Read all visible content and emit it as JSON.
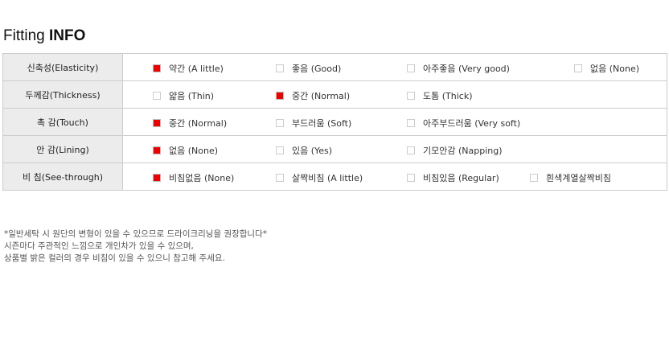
{
  "title": {
    "plain": "Fitting ",
    "bold": "INFO"
  },
  "rows": [
    {
      "label": "신축성(Elasticity)",
      "options": [
        {
          "text": "약간 (A little)",
          "checked": true
        },
        {
          "text": "좋음 (Good)",
          "checked": false
        },
        {
          "text": "아주좋음 (Very good)",
          "checked": false
        },
        {
          "text": "없음 (None)",
          "checked": false
        }
      ]
    },
    {
      "label": "두께감(Thickness)",
      "options": [
        {
          "text": "얇음 (Thin)",
          "checked": false
        },
        {
          "text": "중간 (Normal)",
          "checked": true
        },
        {
          "text": "도톰 (Thick)",
          "checked": false
        }
      ]
    },
    {
      "label": "촉 감(Touch)",
      "options": [
        {
          "text": "중간 (Normal)",
          "checked": true
        },
        {
          "text": "부드러움 (Soft)",
          "checked": false
        },
        {
          "text": "아주부드러움 (Very soft)",
          "checked": false
        }
      ]
    },
    {
      "label": "안 감(Lining)",
      "options": [
        {
          "text": "없음 (None)",
          "checked": true
        },
        {
          "text": "있음 (Yes)",
          "checked": false
        },
        {
          "text": "기모안감 (Napping)",
          "checked": false
        }
      ]
    },
    {
      "label": "비 침(See-through)",
      "options": [
        {
          "text": "비침없음 (None)",
          "checked": true
        },
        {
          "text": "살짝비침 (A little)",
          "checked": false
        },
        {
          "text": "비침있음 (Regular)",
          "checked": false
        },
        {
          "text": "흰색계열살짝비침",
          "checked": false
        }
      ]
    }
  ],
  "notes": [
    "*일반세탁 시 원단의 변형이 있을 수 있으므로 드라이크리닝을 권장합니다*",
    "시즌마다 주관적인 느낌으로 개인차가 있을 수 있으며,",
    "상품별 밝은 컬러의 경우 비침이 있을 수 있으니 참고해 주세요."
  ],
  "colors": {
    "checked": "#ee0000"
  }
}
